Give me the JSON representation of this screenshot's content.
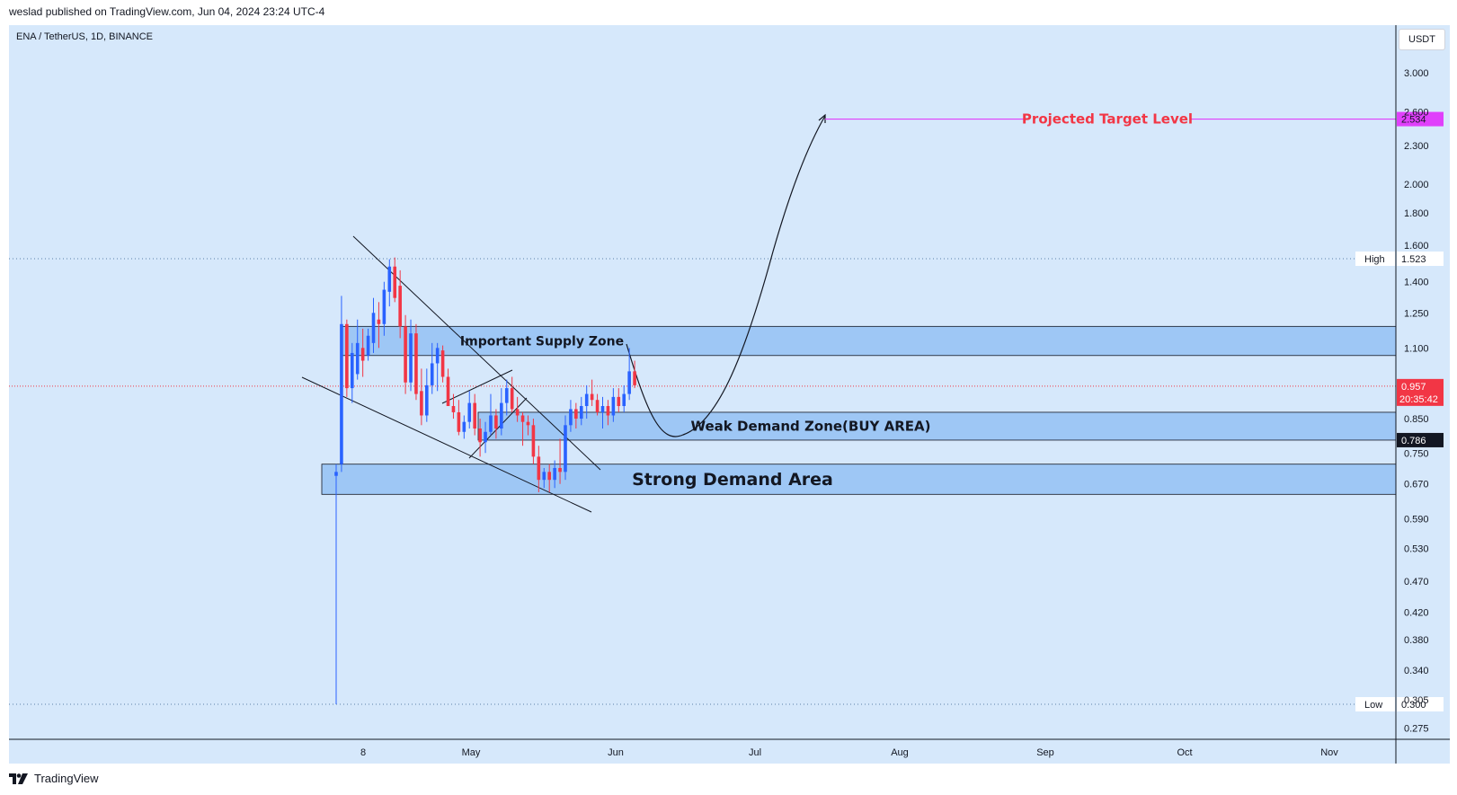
{
  "header": {
    "published_text": "weslad published on TradingView.com, Jun 04, 2024 23:24 UTC-4"
  },
  "symbol_text": "ENA / TetherUS, 1D, BINANCE",
  "currency": "USDT",
  "footer": {
    "brand": "TradingView"
  },
  "colors": {
    "background": "#d6e8fb",
    "zone_fill": "#9ec7f5",
    "bull": "#2962ff",
    "bear": "#f23645",
    "target": "#e040fb",
    "target_text": "#f23645",
    "price_line": "#f23645"
  },
  "chart_data": {
    "type": "candlestick",
    "scale": "log",
    "y_ticks": [
      "3.000",
      "2.600",
      "2.300",
      "2.000",
      "1.800",
      "1.600",
      "1.400",
      "1.250",
      "1.100",
      "0.850",
      "0.750",
      "0.670",
      "0.590",
      "0.530",
      "0.470",
      "0.420",
      "0.380",
      "0.340",
      "0.305",
      "0.275"
    ],
    "x_ticks": [
      "8",
      "May",
      "Jun",
      "Jul",
      "Aug",
      "Sep",
      "Oct",
      "Nov"
    ],
    "price_labels": {
      "target": "2.534",
      "high": "1.523",
      "current": "0.957",
      "countdown": "20:35:42",
      "weak_level": "0.786",
      "low": "0.300"
    },
    "high_label": "High",
    "low_label": "Low",
    "zones": [
      {
        "label": "Important Supply Zone",
        "top": 1.19,
        "bottom": 1.07
      },
      {
        "label": "Weak Demand Zone(BUY AREA)",
        "top": 0.87,
        "bottom": 0.786
      },
      {
        "label": "Strong Demand Area",
        "top": 0.72,
        "bottom": 0.645
      }
    ],
    "target_label": "Projected Target Level",
    "candles": [
      [
        0.69,
        0.72,
        0.3,
        0.7
      ],
      [
        0.72,
        1.33,
        0.7,
        1.2
      ],
      [
        1.2,
        1.22,
        0.92,
        0.95
      ],
      [
        0.95,
        1.12,
        0.9,
        1.08
      ],
      [
        1.0,
        1.22,
        0.98,
        1.12
      ],
      [
        1.1,
        1.18,
        0.99,
        1.05
      ],
      [
        1.07,
        1.18,
        1.05,
        1.15
      ],
      [
        1.12,
        1.32,
        1.08,
        1.25
      ],
      [
        1.22,
        1.3,
        1.1,
        1.2
      ],
      [
        1.2,
        1.4,
        1.15,
        1.36
      ],
      [
        1.35,
        1.52,
        1.28,
        1.48
      ],
      [
        1.48,
        1.53,
        1.3,
        1.32
      ],
      [
        1.38,
        1.46,
        1.14,
        1.19
      ],
      [
        1.19,
        1.24,
        0.93,
        0.97
      ],
      [
        0.97,
        1.22,
        0.94,
        1.16
      ],
      [
        1.16,
        1.2,
        0.91,
        0.93
      ],
      [
        0.94,
        1.02,
        0.83,
        0.86
      ],
      [
        0.86,
        1.02,
        0.84,
        0.96
      ],
      [
        0.96,
        1.12,
        0.93,
        1.04
      ],
      [
        1.04,
        1.12,
        0.94,
        1.1
      ],
      [
        1.09,
        1.11,
        0.97,
        0.99
      ],
      [
        0.99,
        1.02,
        0.89,
        0.89
      ],
      [
        0.89,
        0.93,
        0.85,
        0.87
      ],
      [
        0.87,
        0.91,
        0.8,
        0.81
      ],
      [
        0.81,
        0.86,
        0.79,
        0.84
      ],
      [
        0.84,
        0.94,
        0.82,
        0.9
      ],
      [
        0.9,
        0.93,
        0.8,
        0.82
      ],
      [
        0.82,
        0.85,
        0.74,
        0.78
      ],
      [
        0.78,
        0.84,
        0.75,
        0.81
      ],
      [
        0.81,
        0.93,
        0.8,
        0.86
      ],
      [
        0.86,
        0.88,
        0.79,
        0.82
      ],
      [
        0.82,
        0.95,
        0.8,
        0.9
      ],
      [
        0.9,
        0.98,
        0.86,
        0.95
      ],
      [
        0.95,
        0.99,
        0.87,
        0.88
      ],
      [
        0.88,
        0.92,
        0.84,
        0.86
      ],
      [
        0.86,
        0.87,
        0.77,
        0.84
      ],
      [
        0.84,
        0.86,
        0.8,
        0.83
      ],
      [
        0.83,
        0.85,
        0.72,
        0.74
      ],
      [
        0.74,
        0.77,
        0.65,
        0.68
      ],
      [
        0.68,
        0.71,
        0.66,
        0.7
      ],
      [
        0.7,
        0.72,
        0.65,
        0.68
      ],
      [
        0.68,
        0.73,
        0.66,
        0.71
      ],
      [
        0.71,
        0.79,
        0.67,
        0.7
      ],
      [
        0.7,
        0.86,
        0.68,
        0.83
      ],
      [
        0.83,
        0.91,
        0.81,
        0.88
      ],
      [
        0.88,
        0.9,
        0.82,
        0.85
      ],
      [
        0.85,
        0.92,
        0.83,
        0.89
      ],
      [
        0.89,
        0.96,
        0.85,
        0.93
      ],
      [
        0.93,
        0.98,
        0.89,
        0.91
      ],
      [
        0.91,
        0.93,
        0.86,
        0.87
      ],
      [
        0.87,
        0.92,
        0.82,
        0.89
      ],
      [
        0.89,
        0.91,
        0.83,
        0.86
      ],
      [
        0.86,
        0.95,
        0.84,
        0.92
      ],
      [
        0.92,
        0.95,
        0.87,
        0.89
      ],
      [
        0.89,
        0.96,
        0.87,
        0.93
      ],
      [
        0.93,
        1.1,
        0.91,
        1.01
      ],
      [
        1.01,
        1.05,
        0.95,
        0.96
      ]
    ]
  }
}
